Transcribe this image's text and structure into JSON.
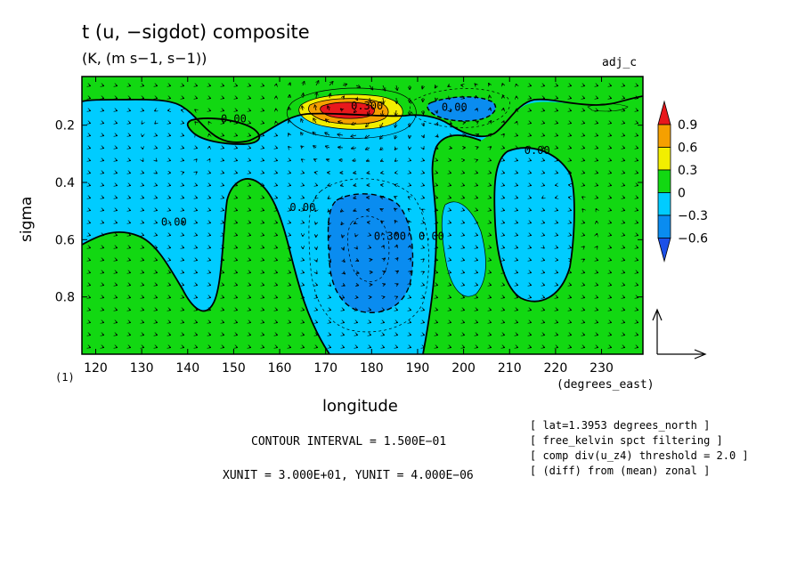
{
  "figure": {
    "title": "t (u, −sigdot) composite",
    "units": "(K, (m s−1, s−1))",
    "experiment": "adj_c",
    "corner_label": "(1)",
    "contour_interval": "CONTOUR INTERVAL = 1.500E−01",
    "vector_units": "XUNIT = 3.000E+01, YUNIT = 4.000E−06",
    "info_lines": [
      "[ lat=1.3953 degrees_north ]",
      "[ free_kelvin spct filtering ]",
      "[ comp div(u_z4) threshold = 2.0 ]",
      "[ (diff) from (mean) zonal ]"
    ]
  },
  "chart_data": {
    "type": "heatmap",
    "title": "t (u, −sigdot) composite",
    "xlabel": "longitude",
    "x_units": "(degrees_east)",
    "ylabel": "sigma",
    "xlim": [
      117,
      239
    ],
    "ylim": [
      0.03,
      1.0
    ],
    "y_inverted": true,
    "x_ticks": [
      120,
      130,
      140,
      150,
      160,
      170,
      180,
      190,
      200,
      210,
      220,
      230
    ],
    "y_ticks": [
      0.2,
      0.4,
      0.6,
      0.8
    ],
    "y_tick_labels": [
      "0.2",
      "0.4",
      "0.6",
      "0.8"
    ],
    "colorbar": {
      "levels": [
        0.9,
        0.6,
        0.3,
        0,
        -0.3,
        -0.6
      ],
      "level_labels": [
        "0.9",
        "0.6",
        "0.3",
        "0",
        "−0.3",
        "−0.6"
      ],
      "colors": [
        "#e8181c",
        "#f5a000",
        "#f2ee00",
        "#12d812",
        "#00ccff",
        "#0a8cf0",
        "#1c50e8"
      ]
    },
    "contour_labels": [
      {
        "text": "0.00",
        "x": 150,
        "y": 0.19
      },
      {
        "text": "0.00",
        "x": 198,
        "y": 0.15
      },
      {
        "text": "0.300",
        "x": 179,
        "y": 0.145
      },
      {
        "text": "0.00",
        "x": 216,
        "y": 0.3
      },
      {
        "text": "0.00",
        "x": 137,
        "y": 0.55
      },
      {
        "text": "0.00",
        "x": 165,
        "y": 0.5
      },
      {
        "text": "0.300",
        "x": 184,
        "y": 0.6
      },
      {
        "text": "0.00",
        "x": 193,
        "y": 0.6
      }
    ],
    "field_centers": [
      {
        "x": 175,
        "y": 0.12,
        "value": 0.9
      },
      {
        "x": 199,
        "y": 0.12,
        "value": -0.4
      },
      {
        "x": 179,
        "y": 0.6,
        "value": -0.45
      },
      {
        "x": 200,
        "y": 0.6,
        "value": -0.15
      },
      {
        "x": 222,
        "y": 0.55,
        "value": -0.2
      },
      {
        "x": 137,
        "y": 0.26,
        "value": -0.2
      }
    ]
  }
}
